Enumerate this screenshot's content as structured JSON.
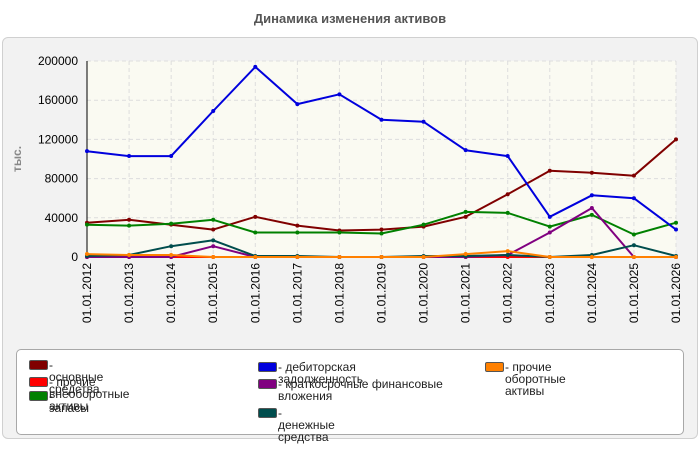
{
  "chart_data": {
    "type": "line",
    "title": "Динамика изменения активов",
    "ylabel": "тыс.",
    "xlabel": "",
    "ylim": [
      0,
      200000
    ],
    "yticks": [
      0,
      40000,
      80000,
      120000,
      160000,
      200000
    ],
    "grid": true,
    "legend_position": "bottom",
    "categories": [
      "01.01.2012",
      "01.01.2013",
      "01.01.2014",
      "01.01.2015",
      "01.01.2016",
      "01.01.2017",
      "01.01.2018",
      "01.01.2019",
      "01.01.2020",
      "01.01.2021",
      "01.01.2022",
      "01.01.2023",
      "01.01.2024",
      "01.01.2025",
      "01.01.2026"
    ],
    "series": [
      {
        "name": "- основные средства",
        "color": "#800000",
        "values": [
          35000,
          38000,
          33000,
          28000,
          41000,
          32000,
          27000,
          28000,
          31000,
          41000,
          64000,
          88000,
          86000,
          83000,
          120000
        ]
      },
      {
        "name": "- прочие внеоборотные активы",
        "color": "#ff0000",
        "values": [
          0,
          0,
          0,
          0,
          0,
          0,
          0,
          0,
          0,
          0,
          0,
          0,
          0,
          0,
          0
        ]
      },
      {
        "name": "- запасы",
        "color": "#008000",
        "values": [
          33000,
          32000,
          34000,
          38000,
          25000,
          25000,
          25000,
          24000,
          33000,
          46000,
          45000,
          31000,
          43000,
          23000,
          35000
        ]
      },
      {
        "name": "- дебиторская задолженность",
        "color": "#0000dd",
        "values": [
          108000,
          103000,
          103000,
          149000,
          194000,
          156000,
          166000,
          140000,
          138000,
          109000,
          103000,
          41000,
          63000,
          60000,
          28000
        ]
      },
      {
        "name": "- краткосрочные финансовые вложения",
        "color": "#800080",
        "values": [
          0,
          0,
          0,
          11000,
          0,
          0,
          0,
          0,
          0,
          0,
          2000,
          25000,
          50000,
          0,
          0
        ]
      },
      {
        "name": "- денежные средства",
        "color": "#004d4d",
        "values": [
          1000,
          2000,
          11000,
          17000,
          1000,
          1000,
          0,
          0,
          1000,
          1000,
          2000,
          0,
          2000,
          12000,
          1000
        ]
      },
      {
        "name": "- прочие оборотные активы",
        "color": "#ff8000",
        "values": [
          3000,
          2000,
          2000,
          0,
          0,
          0,
          0,
          0,
          0,
          3000,
          6000,
          0,
          0,
          0,
          0
        ]
      }
    ]
  }
}
